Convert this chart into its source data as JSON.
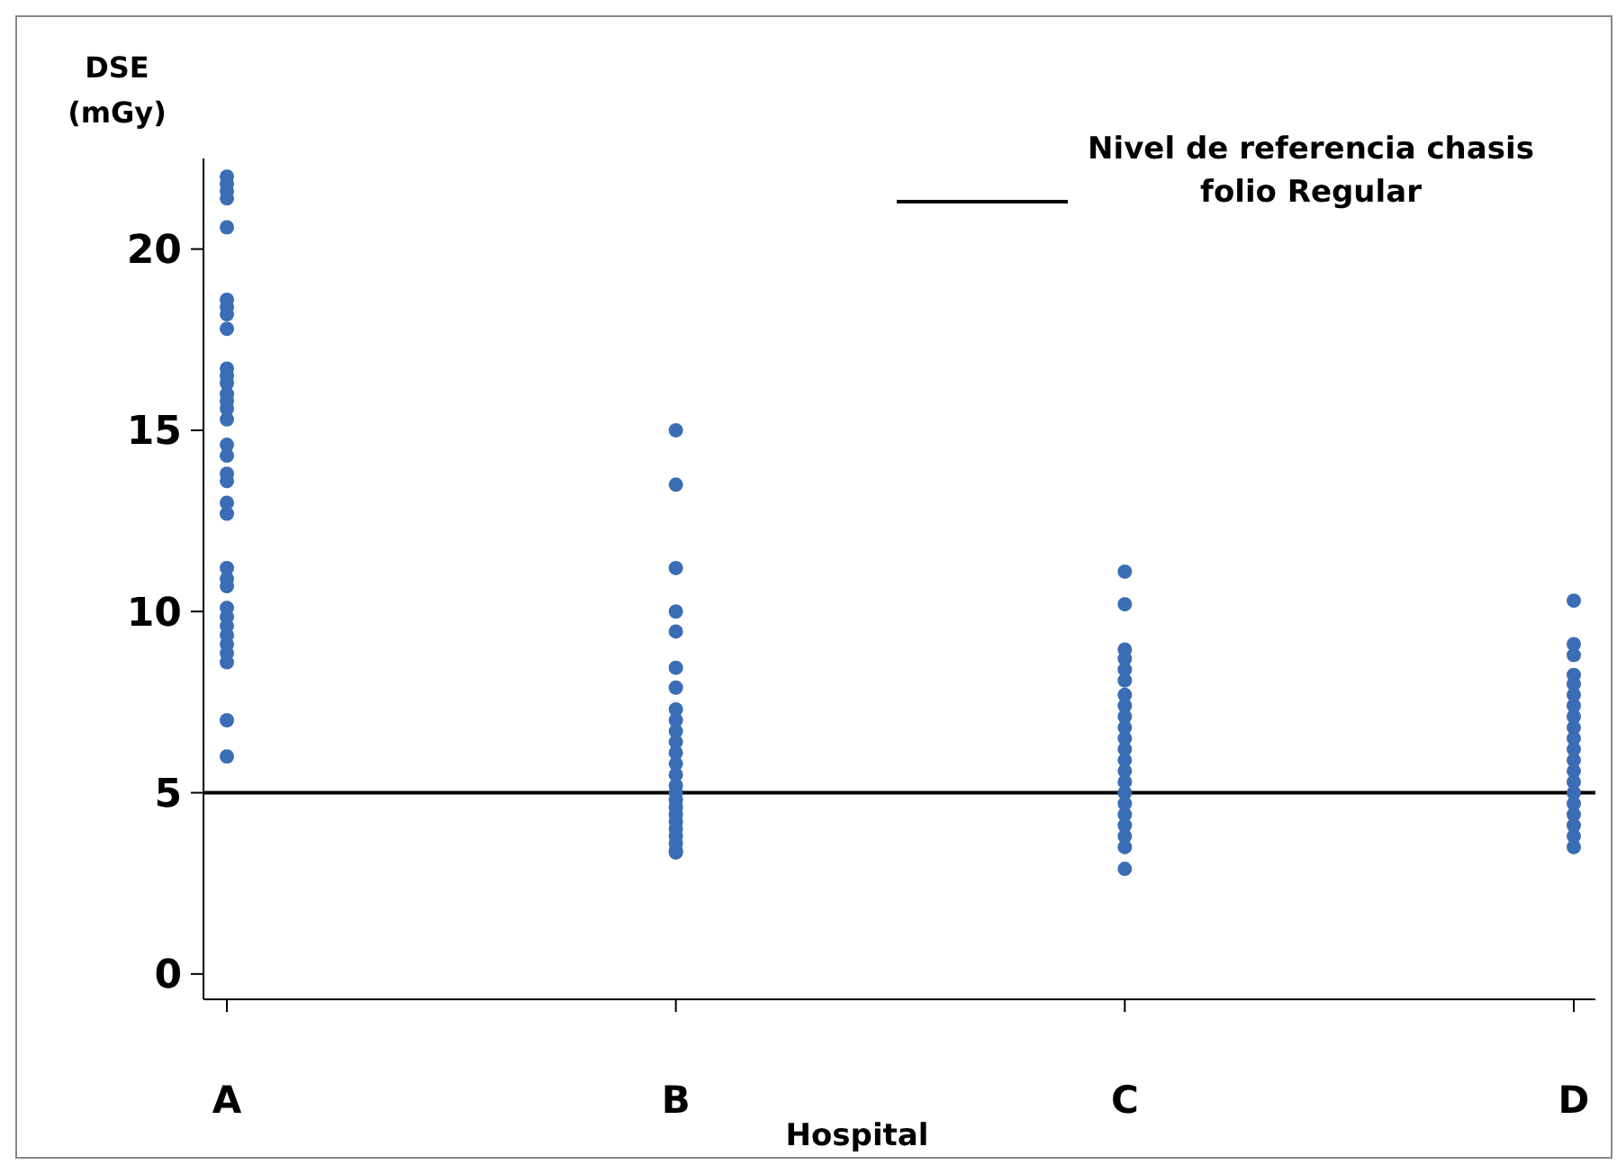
{
  "chart_data": {
    "type": "scatter",
    "xlabel": "Hospital",
    "ylabel": "DSE (mGy)",
    "categories": [
      "A",
      "B",
      "C",
      "D"
    ],
    "series": [
      {
        "color": "#3a6db5",
        "x": [
          "A",
          "A",
          "A",
          "A",
          "A",
          "A",
          "A",
          "A",
          "A",
          "A",
          "A",
          "A",
          "A",
          "A",
          "A",
          "A",
          "A",
          "A",
          "A",
          "A",
          "A",
          "A",
          "A",
          "A",
          "A",
          "A",
          "A",
          "A",
          "A",
          "A",
          "A",
          "A",
          "A",
          "A",
          "B",
          "B",
          "B",
          "B",
          "B",
          "B",
          "B",
          "B",
          "B",
          "B",
          "B",
          "B",
          "B",
          "B",
          "B",
          "B",
          "B",
          "B",
          "B",
          "B",
          "B",
          "B",
          "B",
          "B",
          "B",
          "C",
          "C",
          "C",
          "C",
          "C",
          "C",
          "C",
          "C",
          "C",
          "C",
          "C",
          "C",
          "C",
          "C",
          "C",
          "C",
          "C",
          "C",
          "C",
          "C",
          "C",
          "C",
          "D",
          "D",
          "D",
          "D",
          "D",
          "D",
          "D",
          "D",
          "D",
          "D",
          "D",
          "D",
          "D",
          "D",
          "D",
          "D",
          "D",
          "D",
          "D",
          "D"
        ],
        "values": [
          22,
          21.8,
          21.6,
          21.4,
          20.6,
          18.6,
          18.4,
          18.2,
          17.8,
          16.7,
          16.5,
          16.3,
          16,
          15.8,
          15.6,
          15.3,
          14.6,
          14.3,
          13.8,
          13.6,
          13,
          12.7,
          11.2,
          10.9,
          10.7,
          10.1,
          9.85,
          9.6,
          9.35,
          9.1,
          8.85,
          8.6,
          7,
          6,
          15,
          13.5,
          11.2,
          10,
          9.45,
          8.45,
          7.9,
          7.3,
          7,
          6.7,
          6.4,
          6.1,
          5.8,
          5.5,
          5.2,
          5,
          4.8,
          4.6,
          4.4,
          4.2,
          4,
          3.8,
          3.6,
          3.4,
          3.35,
          11.1,
          10.2,
          8.95,
          8.7,
          8.4,
          8.1,
          7.7,
          7.4,
          7.1,
          6.8,
          6.5,
          6.2,
          5.9,
          5.6,
          5.3,
          5,
          4.7,
          4.4,
          4.1,
          3.8,
          3.5,
          2.9,
          10.3,
          9.1,
          8.8,
          8.25,
          8,
          7.7,
          7.4,
          7.1,
          6.8,
          6.5,
          6.2,
          5.9,
          5.6,
          5.3,
          5,
          4.7,
          4.4,
          4.1,
          3.8,
          3.5
        ]
      }
    ],
    "ref_lines": [
      {
        "axis": "y",
        "value": 5,
        "label": "Nivel de referencia chasis folio Regular",
        "color": "#000000"
      }
    ],
    "ylim": [
      -0.7,
      22.5
    ],
    "yticks": [
      0,
      5,
      10,
      15,
      20
    ],
    "grid": false,
    "legend": "top right",
    "marker": "circle"
  }
}
